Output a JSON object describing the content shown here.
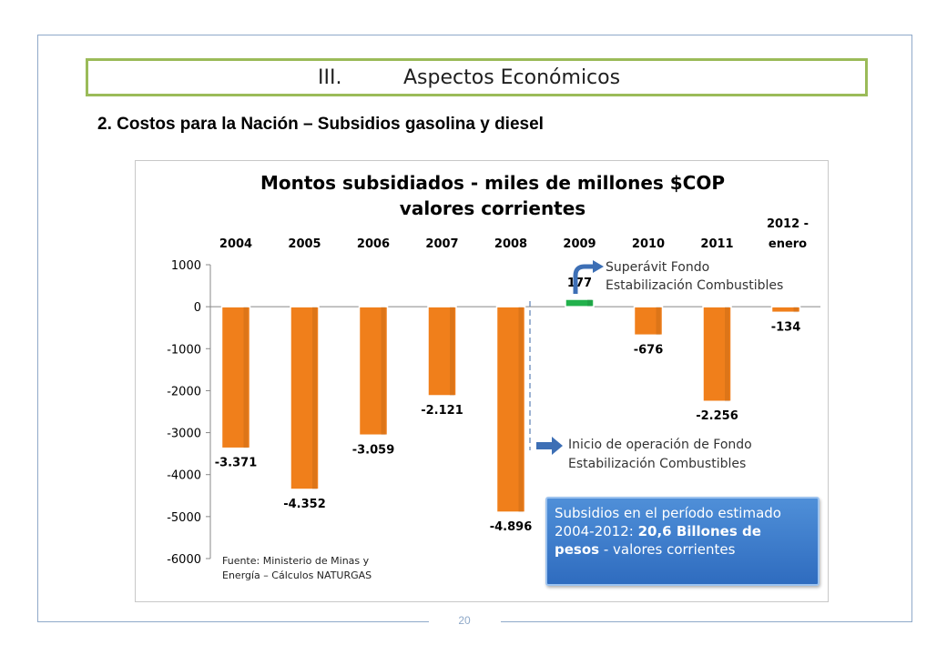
{
  "section": {
    "number": "III.",
    "title": "Aspectos Económicos"
  },
  "subtitle": "2. Costos para la Nación – Subsidios gasolina y diesel",
  "page_number": "20",
  "chart_data": {
    "type": "bar",
    "title": "Montos subsidiados - miles de millones $COP valores corrientes",
    "title_line1": "Montos subsidiados - miles de millones $COP",
    "title_line2": "valores corrientes",
    "categories": [
      "2004",
      "2005",
      "2006",
      "2007",
      "2008",
      "2009",
      "2010",
      "2011",
      "2012 - enero"
    ],
    "values": [
      -3371,
      -4352,
      -3059,
      -2121,
      -4896,
      177,
      -676,
      -2256,
      -134
    ],
    "value_labels": [
      "-3.371",
      "-4.352",
      "-3.059",
      "-2.121",
      "-4.896",
      "177",
      "-676",
      "-2.256",
      "-134"
    ],
    "ylim": [
      -6000,
      1000
    ],
    "yticks": [
      1000,
      0,
      -1000,
      -2000,
      -3000,
      -4000,
      -5000,
      -6000
    ],
    "ytick_labels": [
      "1000",
      "0",
      "-1000",
      "-2000",
      "-3000",
      "-4000",
      "-5000",
      "-6000"
    ],
    "xlabel": "",
    "ylabel": "",
    "grid": false,
    "colors": {
      "negative": "#f07f1b",
      "positive": "#22b14c"
    },
    "annotations": {
      "superavit_line1": "Superávit Fondo",
      "superavit_line2": "Estabilización Combustibles",
      "inicio_line1": "Inicio de operación de  Fondo",
      "inicio_line2": "Estabilización Combustibles",
      "source_line1": "Fuente: Ministerio de Minas y",
      "source_line2": "Energía – Cálculos NATURGAS"
    }
  },
  "callout": {
    "line1": "Subsidios en el período estimado",
    "line2_normal": "2004-2012: ",
    "line2_bold": "20,6 Billones  de",
    "line3_bold": "pesos",
    "line3_normal": " - valores corrientes"
  }
}
